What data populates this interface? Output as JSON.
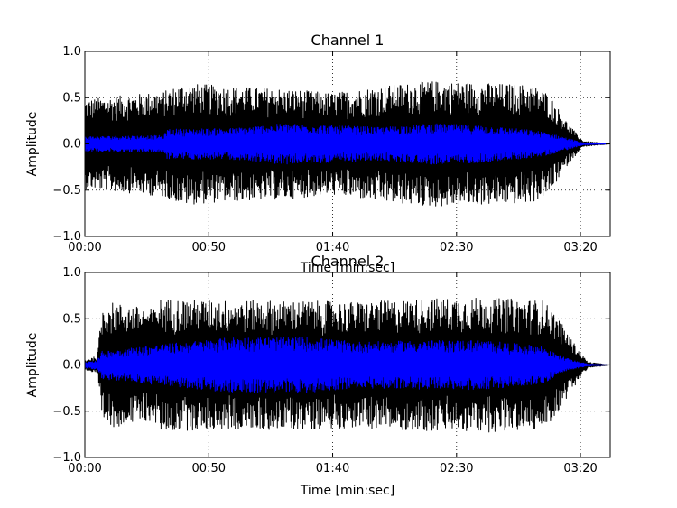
{
  "chart_data": [
    {
      "type": "line",
      "title": "Channel 1",
      "xlabel": "Time [min:sec]",
      "ylabel": "Amplitude",
      "xlim_seconds": [
        0,
        212
      ],
      "ylim": [
        -1.0,
        1.0
      ],
      "x_ticks": [
        "00:00",
        "00:50",
        "01:40",
        "02:30",
        "03:20"
      ],
      "y_ticks": [
        "1.0",
        "0.5",
        "0.0",
        "−0.5",
        "−1.0"
      ],
      "grid": true,
      "series": [
        {
          "color": "#000000",
          "x_seconds": [
            0,
            25,
            33,
            40,
            60,
            80,
            100,
            120,
            140,
            160,
            180,
            187,
            195,
            201,
            212
          ],
          "envelope": [
            0.48,
            0.55,
            0.58,
            0.66,
            0.62,
            0.6,
            0.55,
            0.63,
            0.68,
            0.66,
            0.64,
            0.55,
            0.22,
            0.03,
            0.0
          ]
        },
        {
          "color": "#0000ff",
          "x_seconds": [
            0,
            25,
            32,
            33,
            60,
            80,
            100,
            120,
            140,
            160,
            180,
            187,
            195,
            201,
            212
          ],
          "envelope": [
            0.08,
            0.09,
            0.09,
            0.16,
            0.17,
            0.22,
            0.2,
            0.18,
            0.22,
            0.2,
            0.15,
            0.12,
            0.06,
            0.01,
            0.0
          ]
        }
      ]
    },
    {
      "type": "line",
      "title": "Channel 2",
      "xlabel": "Time [min:sec]",
      "ylabel": "Amplitude",
      "xlim_seconds": [
        0,
        212
      ],
      "ylim": [
        -1.0,
        1.0
      ],
      "x_ticks": [
        "00:00",
        "00:50",
        "01:40",
        "02:30",
        "03:20"
      ],
      "y_ticks": [
        "1.0",
        "0.5",
        "0.0",
        "−0.5",
        "−1.0"
      ],
      "grid": true,
      "series": [
        {
          "color": "#000000",
          "x_seconds": [
            0,
            5,
            7,
            10,
            28,
            30,
            50,
            80,
            110,
            140,
            160,
            185,
            190,
            197,
            203,
            212
          ],
          "envelope": [
            0.05,
            0.1,
            0.62,
            0.68,
            0.6,
            0.72,
            0.7,
            0.7,
            0.68,
            0.72,
            0.73,
            0.7,
            0.55,
            0.25,
            0.03,
            0.0
          ]
        },
        {
          "color": "#0000ff",
          "x_seconds": [
            0,
            5,
            7,
            30,
            60,
            90,
            110,
            130,
            160,
            185,
            190,
            197,
            203,
            212
          ],
          "envelope": [
            0.03,
            0.05,
            0.15,
            0.22,
            0.3,
            0.3,
            0.25,
            0.26,
            0.27,
            0.2,
            0.12,
            0.05,
            0.01,
            0.0
          ]
        }
      ]
    }
  ]
}
